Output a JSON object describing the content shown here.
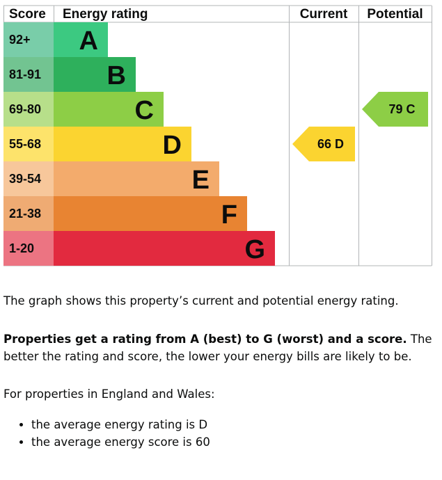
{
  "chart_data": {
    "type": "bar",
    "headers": {
      "score": "Score",
      "rating": "Energy rating",
      "current": "Current",
      "potential": "Potential"
    },
    "bands": [
      {
        "score": "92+",
        "letter": "A",
        "color": "#3cc981",
        "score_bg": "#79cda9"
      },
      {
        "score": "81-91",
        "letter": "B",
        "color": "#2eb05c",
        "score_bg": "#72c491"
      },
      {
        "score": "69-80",
        "letter": "C",
        "color": "#8dce46",
        "score_bg": "#b7df8a"
      },
      {
        "score": "55-68",
        "letter": "D",
        "color": "#fbd430",
        "score_bg": "#fde36b"
      },
      {
        "score": "39-54",
        "letter": "E",
        "color": "#f3ab6c",
        "score_bg": "#f7c79b"
      },
      {
        "score": "21-38",
        "letter": "F",
        "color": "#e88432",
        "score_bg": "#efab73"
      },
      {
        "score": "1-20",
        "letter": "G",
        "color": "#e22a3f",
        "score_bg": "#ec7482"
      }
    ],
    "current": {
      "value": 66,
      "letter": "D",
      "label": "66  D",
      "color": "#fbd430"
    },
    "potential": {
      "value": 79,
      "letter": "C",
      "label": "79  C",
      "color": "#8dce46"
    }
  },
  "text": {
    "intro": "The graph shows this property’s current and potential energy rating.",
    "para2_bold": "Properties get a rating from A (best) to G (worst) and a score.",
    "para2_rest": " The better the rating and score, the lower your energy bills are likely to be.",
    "para3": "For properties in England and Wales:",
    "bullets": [
      "the average energy rating is D",
      "the average energy score is 60"
    ]
  }
}
